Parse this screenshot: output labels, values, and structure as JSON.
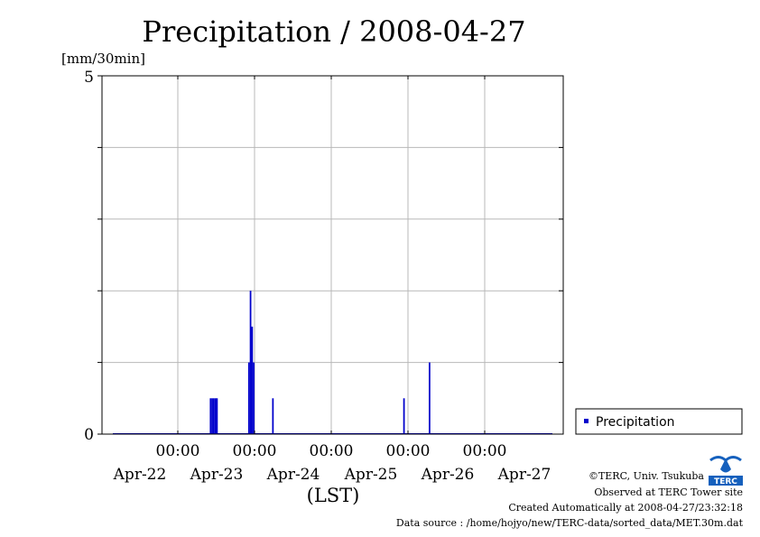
{
  "chart_data": {
    "type": "bar",
    "title": "Precipitation / 2008-04-27",
    "ylabel": "[mm/30min]",
    "xlabel": "(LST)",
    "ylim": [
      0,
      5
    ],
    "y_tick_labels": [
      "0",
      "5"
    ],
    "x_time_labels": [
      "00:00",
      "00:00",
      "00:00",
      "00:00",
      "00:00"
    ],
    "x_date_labels": [
      "Apr-22",
      "Apr-23",
      "Apr-24",
      "Apr-25",
      "Apr-26",
      "Apr-27"
    ],
    "grid": true,
    "legend_position": "right",
    "series": [
      {
        "name": "Precipitation",
        "color": "#0000cc",
        "points": [
          {
            "t": "2008-04-23 10:30",
            "value": 0.5
          },
          {
            "t": "2008-04-23 11:00",
            "value": 0.5
          },
          {
            "t": "2008-04-23 11:30",
            "value": 0.5
          },
          {
            "t": "2008-04-23 12:00",
            "value": 0.5
          },
          {
            "t": "2008-04-23 12:30",
            "value": 0.5
          },
          {
            "t": "2008-04-23 22:30",
            "value": 1.0
          },
          {
            "t": "2008-04-23 23:00",
            "value": 2.0
          },
          {
            "t": "2008-04-23 23:30",
            "value": 1.5
          },
          {
            "t": "2008-04-24 00:00",
            "value": 1.0
          },
          {
            "t": "2008-04-24 06:00",
            "value": 0.5
          },
          {
            "t": "2008-04-25 23:00",
            "value": 0.5
          },
          {
            "t": "2008-04-26 07:00",
            "value": 1.0
          }
        ]
      }
    ]
  },
  "credits": {
    "copyright": "©TERC, Univ. Tsukuba",
    "observed": "Observed at TERC Tower site",
    "created": "Created Automatically at 2008-04-27/23:32:18",
    "source": "Data source : /home/hojyo/new/TERC-data/sorted_data/MET.30m.dat"
  },
  "logo": {
    "text": "TERC",
    "color": "#1560bd"
  }
}
